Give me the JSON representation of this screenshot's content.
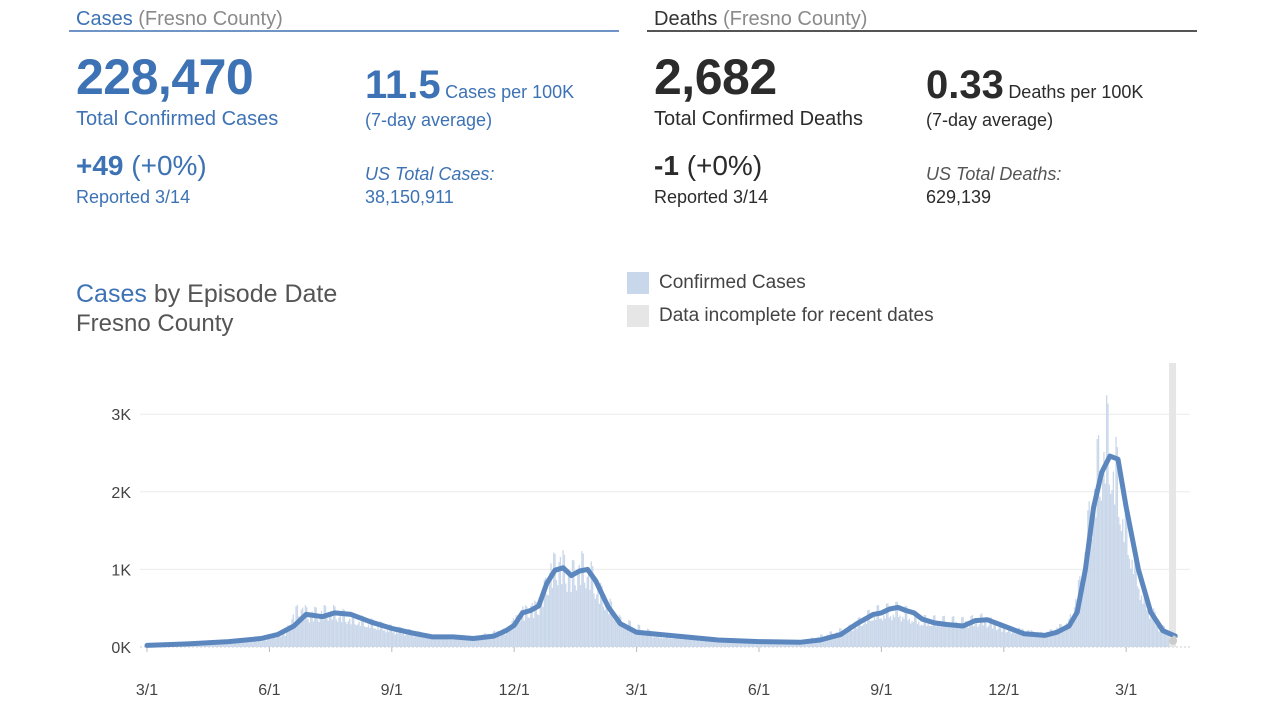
{
  "cases": {
    "header": "Cases",
    "header_sub": "(Fresno County)",
    "total": "228,470",
    "total_label": "Total Confirmed Cases",
    "change": "+49",
    "change_pct": "(+0%)",
    "reported": "Reported 3/14",
    "per100k": "11.5",
    "per100k_label": "Cases per 100K",
    "avg_label": "(7-day average)",
    "us_label": "US Total Cases:",
    "us_total": "38,150,911"
  },
  "deaths": {
    "header": "Deaths",
    "header_sub": "(Fresno County)",
    "total": "2,682",
    "total_label": "Total Confirmed Deaths",
    "change": "-1",
    "change_pct": "(+0%)",
    "reported": "Reported 3/14",
    "per100k": "0.33",
    "per100k_label": "Deaths per 100K",
    "avg_label": "(7-day average)",
    "us_label": "US Total Deaths:",
    "us_total": "629,139"
  },
  "chart_data": {
    "type": "bar",
    "title_highlight": "Cases",
    "title_rest": "by Episode Date",
    "subtitle": "Fresno County",
    "legend": [
      {
        "label": "Confirmed Cases",
        "color": "#c9d7ea"
      },
      {
        "label": "Data incomplete for recent dates",
        "color": "#e6e6e6"
      }
    ],
    "x_ticks": [
      "3/1",
      "6/1",
      "9/1",
      "12/1",
      "3/1",
      "6/1",
      "9/1",
      "12/1",
      "3/1"
    ],
    "y_ticks": [
      {
        "label": "0K",
        "value": 0
      },
      {
        "label": "1K",
        "value": 1000
      },
      {
        "label": "2K",
        "value": 2000
      },
      {
        "label": "3K",
        "value": 3000
      }
    ],
    "ylim": [
      0,
      3600
    ],
    "x_unit": "months since 2020-03-01",
    "xlim": [
      0,
      25.4
    ],
    "average_series": {
      "name": "7-day average",
      "color": "#5b87be",
      "points": [
        [
          0,
          20
        ],
        [
          1,
          40
        ],
        [
          2,
          70
        ],
        [
          2.8,
          110
        ],
        [
          3.2,
          160
        ],
        [
          3.6,
          270
        ],
        [
          3.9,
          420
        ],
        [
          4.3,
          390
        ],
        [
          4.6,
          440
        ],
        [
          5.0,
          420
        ],
        [
          5.5,
          320
        ],
        [
          6.0,
          240
        ],
        [
          6.5,
          180
        ],
        [
          7.0,
          130
        ],
        [
          7.5,
          130
        ],
        [
          8.0,
          110
        ],
        [
          8.5,
          140
        ],
        [
          8.8,
          210
        ],
        [
          9.0,
          280
        ],
        [
          9.2,
          440
        ],
        [
          9.4,
          470
        ],
        [
          9.6,
          530
        ],
        [
          9.8,
          820
        ],
        [
          10.0,
          990
        ],
        [
          10.2,
          1020
        ],
        [
          10.4,
          920
        ],
        [
          10.6,
          980
        ],
        [
          10.8,
          1000
        ],
        [
          11.0,
          850
        ],
        [
          11.3,
          520
        ],
        [
          11.6,
          300
        ],
        [
          12.0,
          190
        ],
        [
          13.0,
          140
        ],
        [
          14.0,
          90
        ],
        [
          15.0,
          70
        ],
        [
          16.0,
          60
        ],
        [
          16.5,
          90
        ],
        [
          17.0,
          160
        ],
        [
          17.4,
          300
        ],
        [
          17.8,
          420
        ],
        [
          18.0,
          440
        ],
        [
          18.2,
          490
        ],
        [
          18.4,
          510
        ],
        [
          18.6,
          470
        ],
        [
          18.8,
          440
        ],
        [
          19.0,
          360
        ],
        [
          19.3,
          310
        ],
        [
          19.6,
          290
        ],
        [
          20.0,
          270
        ],
        [
          20.3,
          340
        ],
        [
          20.6,
          350
        ],
        [
          21.0,
          270
        ],
        [
          21.5,
          170
        ],
        [
          22.0,
          150
        ],
        [
          22.3,
          190
        ],
        [
          22.6,
          270
        ],
        [
          22.8,
          450
        ],
        [
          23.0,
          1000
        ],
        [
          23.2,
          1800
        ],
        [
          23.4,
          2250
        ],
        [
          23.6,
          2460
        ],
        [
          23.8,
          2420
        ],
        [
          24.0,
          1800
        ],
        [
          24.3,
          1000
        ],
        [
          24.6,
          450
        ],
        [
          24.9,
          210
        ],
        [
          25.2,
          140
        ]
      ]
    },
    "bar_envelope": [
      [
        0,
        20
      ],
      [
        2.8,
        120
      ],
      [
        3.4,
        260
      ],
      [
        3.7,
        650
      ],
      [
        4.0,
        560
      ],
      [
        4.5,
        600
      ],
      [
        5.0,
        480
      ],
      [
        6.0,
        300
      ],
      [
        7.0,
        170
      ],
      [
        8.0,
        150
      ],
      [
        8.8,
        280
      ],
      [
        9.2,
        600
      ],
      [
        9.6,
        700
      ],
      [
        9.9,
        1300
      ],
      [
        10.1,
        1450
      ],
      [
        10.4,
        1200
      ],
      [
        10.6,
        1350
      ],
      [
        10.8,
        1300
      ],
      [
        11.1,
        900
      ],
      [
        11.6,
        420
      ],
      [
        12.5,
        190
      ],
      [
        14.0,
        120
      ],
      [
        16.0,
        80
      ],
      [
        17.2,
        300
      ],
      [
        17.8,
        560
      ],
      [
        18.4,
        620
      ],
      [
        19.0,
        440
      ],
      [
        20.0,
        420
      ],
      [
        20.5,
        480
      ],
      [
        21.0,
        330
      ],
      [
        22.0,
        210
      ],
      [
        22.6,
        400
      ],
      [
        22.9,
        1100
      ],
      [
        23.2,
        2600
      ],
      [
        23.5,
        3500
      ],
      [
        23.7,
        3050
      ],
      [
        24.0,
        2000
      ],
      [
        24.4,
        900
      ],
      [
        24.8,
        350
      ],
      [
        25.2,
        150
      ]
    ],
    "incomplete_start": 25.05,
    "incomplete_end_value": 80
  }
}
